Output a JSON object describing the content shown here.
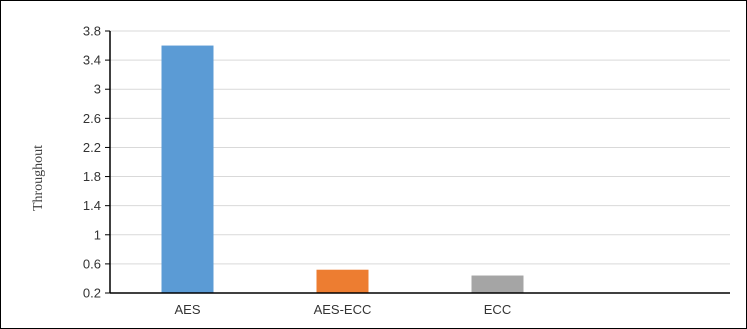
{
  "chart_data": {
    "type": "bar",
    "title": "",
    "xlabel": "",
    "ylabel": "Throughout",
    "categories": [
      "AES",
      "AES-ECC",
      "ECC"
    ],
    "values": [
      3.6,
      0.52,
      0.44
    ],
    "colors": [
      "#5B9BD5",
      "#ED7D31",
      "#A5A5A5"
    ],
    "ylim": [
      0.2,
      3.8
    ],
    "yticks": [
      "0.2",
      "0.6",
      "1",
      "1.4",
      "1.8",
      "2.2",
      "2.6",
      "3",
      "3.4",
      "3.8"
    ],
    "grid": true,
    "legend": "none"
  }
}
